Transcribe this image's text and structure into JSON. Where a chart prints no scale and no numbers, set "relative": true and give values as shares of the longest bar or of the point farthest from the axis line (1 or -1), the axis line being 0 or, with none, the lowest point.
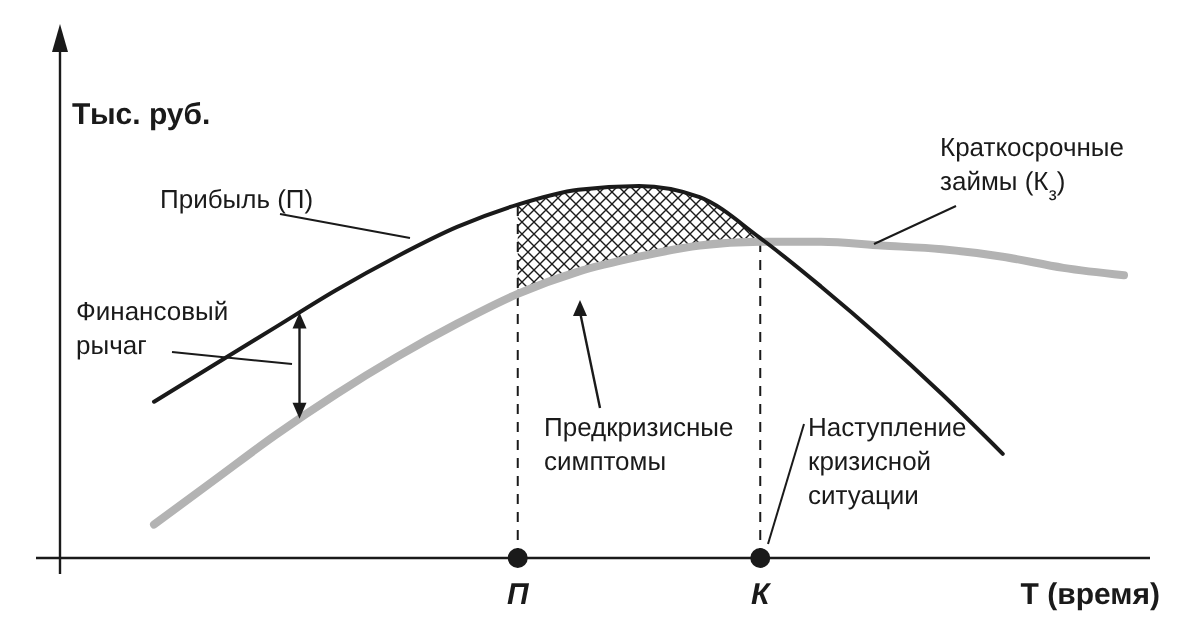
{
  "chart_data": {
    "type": "line",
    "relative": true,
    "ylabel": "Тыс. руб.",
    "xlabel": "Т (время)",
    "categories": [
      null,
      null,
      null,
      null,
      null,
      null,
      "П",
      null,
      null,
      null,
      "К",
      null,
      null,
      null,
      null,
      null,
      null
    ],
    "series": [
      {
        "name": "Прибыль (П)",
        "color": "#1a1a1a",
        "values": [
          0.42,
          0.52,
          0.62,
          0.72,
          0.81,
          0.89,
          0.95,
          0.99,
          1.0,
          0.97,
          0.86,
          0.73,
          0.59,
          0.44,
          0.28,
          null,
          null
        ],
        "lower": [
          null,
          null,
          null,
          null,
          null,
          null,
          0.71,
          0.77,
          0.81,
          0.84,
          0.85,
          null,
          null,
          null,
          null,
          null,
          null
        ],
        "upper": [
          null,
          null,
          null,
          null,
          null,
          null,
          0.95,
          0.99,
          1.0,
          0.97,
          0.86,
          null,
          null,
          null,
          null,
          null,
          null
        ]
      },
      {
        "name": "Краткосрочные\nзаймы (К$_{з}$)",
        "color": "#b3b3b3",
        "values": [
          0.09,
          0.21,
          0.33,
          0.44,
          0.54,
          0.63,
          0.71,
          0.77,
          0.81,
          0.84,
          0.85,
          0.85,
          0.84,
          0.83,
          0.81,
          0.78,
          0.76
        ]
      }
    ],
    "ref_lines": [
      {
        "axis": "x",
        "value": "П",
        "line_style": "dashed",
        "color": "#1a1a1a"
      },
      {
        "axis": "x",
        "value": "К",
        "line_style": "dashed",
        "color": "#1a1a1a"
      }
    ],
    "annotations": [
      "Финансовый\nрычаг",
      "Предкризисные\nсимптомы",
      "Наступление\nкризисной\nситуации"
    ]
  }
}
